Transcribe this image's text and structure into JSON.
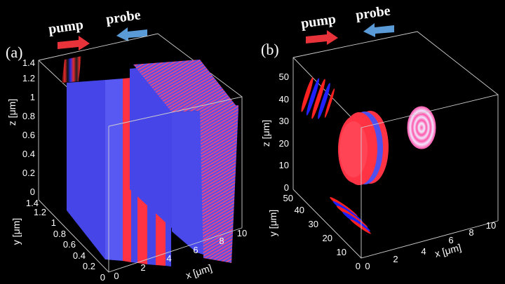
{
  "panels": [
    {
      "label": "(a)",
      "pump_label": "pump",
      "probe_label": "probe",
      "z_axis": {
        "label": "z [μm]",
        "ticks": [
          "0",
          "0.2",
          "0.4",
          "0.6",
          "0.8",
          "1",
          "1.2",
          "1.4"
        ]
      },
      "y_axis": {
        "label": "y [μm]",
        "ticks": [
          "0",
          "0.2",
          "0.4",
          "0.6",
          "0.8",
          "1",
          "1.2",
          "1.4"
        ]
      },
      "x_axis": {
        "label": "x [μm]",
        "ticks": [
          "0",
          "2",
          "4",
          "6",
          "8",
          "10"
        ]
      }
    },
    {
      "label": "(b)",
      "pump_label": "pump",
      "probe_label": "probe",
      "z_axis": {
        "label": "z [μm]",
        "ticks": [
          "0",
          "10",
          "20",
          "30",
          "40",
          "50"
        ]
      },
      "y_axis": {
        "label": "y [μm]",
        "ticks": [
          "0",
          "10",
          "20",
          "30",
          "40",
          "50"
        ]
      },
      "x_axis": {
        "label": "x [μm]",
        "ticks": [
          "0",
          "2",
          "4",
          "6",
          "8",
          "10"
        ]
      }
    }
  ],
  "colors": {
    "pump_arrow": "#e8333a",
    "probe_arrow": "#5a9ad6",
    "blue_region": "#4545e8",
    "red_region": "#ff3344",
    "box_lines": "#cfcfcf",
    "background": "#000000"
  }
}
